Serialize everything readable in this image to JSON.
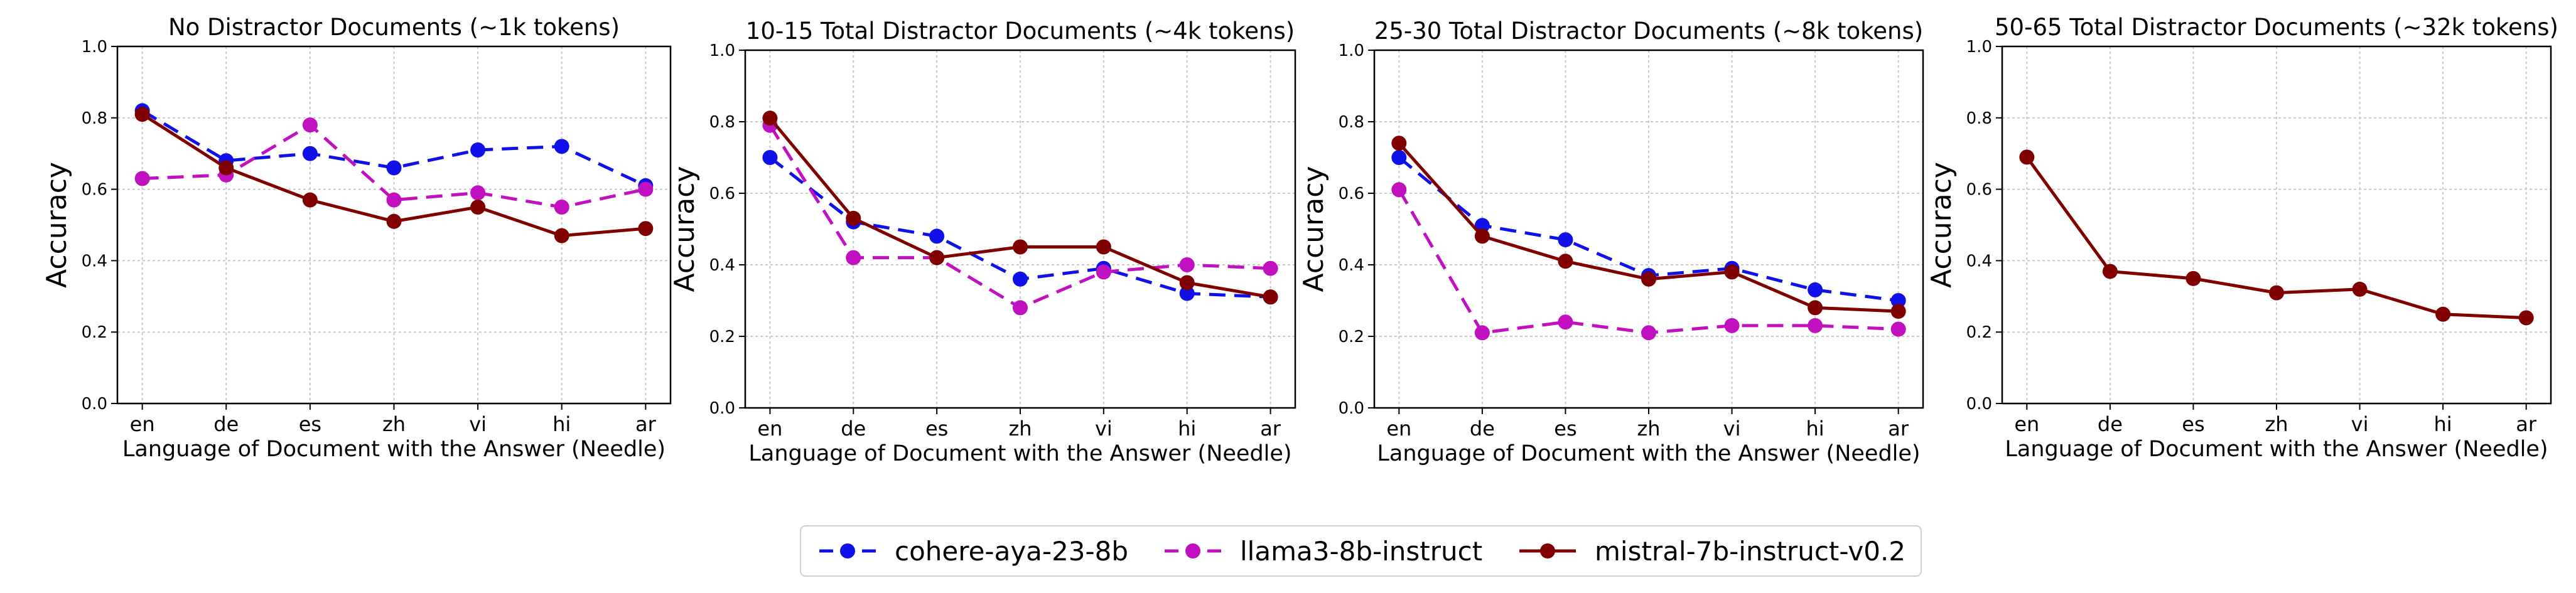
{
  "chart_data": [
    {
      "type": "line",
      "title": "No Distractor Documents (~1k tokens)",
      "xlabel": "Language of Document with the Answer (Needle)",
      "ylabel": "Accuracy",
      "categories": [
        "en",
        "de",
        "es",
        "zh",
        "vi",
        "hi",
        "ar"
      ],
      "ylim": [
        0,
        1
      ],
      "yticks": [
        "0.0",
        "0.2",
        "0.4",
        "0.6",
        "0.8",
        "1.0"
      ],
      "grid": true,
      "series": [
        {
          "name": "cohere-aya-23-8b",
          "values": [
            0.82,
            0.68,
            0.7,
            0.66,
            0.71,
            0.72,
            0.61
          ]
        },
        {
          "name": "llama3-8b-instruct",
          "values": [
            0.63,
            0.64,
            0.78,
            0.57,
            0.59,
            0.55,
            0.6
          ]
        },
        {
          "name": "mistral-7b-instruct-v0.2",
          "values": [
            0.81,
            0.66,
            0.57,
            0.51,
            0.55,
            0.47,
            0.49
          ]
        }
      ]
    },
    {
      "type": "line",
      "title": "10-15 Total Distractor Documents (~4k tokens)",
      "xlabel": "Language of Document with the Answer (Needle)",
      "ylabel": "Accuracy",
      "categories": [
        "en",
        "de",
        "es",
        "zh",
        "vi",
        "hi",
        "ar"
      ],
      "ylim": [
        0,
        1
      ],
      "yticks": [
        "0.0",
        "0.2",
        "0.4",
        "0.6",
        "0.8",
        "1.0"
      ],
      "grid": true,
      "series": [
        {
          "name": "cohere-aya-23-8b",
          "values": [
            0.7,
            0.52,
            0.48,
            0.36,
            0.39,
            0.32,
            0.31
          ]
        },
        {
          "name": "llama3-8b-instruct",
          "values": [
            0.79,
            0.42,
            0.42,
            0.28,
            0.38,
            0.4,
            0.39
          ]
        },
        {
          "name": "mistral-7b-instruct-v0.2",
          "values": [
            0.81,
            0.53,
            0.42,
            0.45,
            0.45,
            0.35,
            0.31
          ]
        }
      ]
    },
    {
      "type": "line",
      "title": "25-30 Total Distractor Documents (~8k tokens)",
      "xlabel": "Language of Document with the Answer (Needle)",
      "ylabel": "Accuracy",
      "categories": [
        "en",
        "de",
        "es",
        "zh",
        "vi",
        "hi",
        "ar"
      ],
      "ylim": [
        0,
        1
      ],
      "yticks": [
        "0.0",
        "0.2",
        "0.4",
        "0.6",
        "0.8",
        "1.0"
      ],
      "grid": true,
      "series": [
        {
          "name": "cohere-aya-23-8b",
          "values": [
            0.7,
            0.51,
            0.47,
            0.37,
            0.39,
            0.33,
            0.3
          ]
        },
        {
          "name": "llama3-8b-instruct",
          "values": [
            0.61,
            0.21,
            0.24,
            0.21,
            0.23,
            0.23,
            0.22
          ]
        },
        {
          "name": "mistral-7b-instruct-v0.2",
          "values": [
            0.74,
            0.48,
            0.41,
            0.36,
            0.38,
            0.28,
            0.27
          ]
        }
      ]
    },
    {
      "type": "line",
      "title": "50-65 Total Distractor Documents (~32k tokens)",
      "xlabel": "Language of Document with the Answer (Needle)",
      "ylabel": "Accuracy",
      "categories": [
        "en",
        "de",
        "es",
        "zh",
        "vi",
        "hi",
        "ar"
      ],
      "ylim": [
        0,
        1
      ],
      "yticks": [
        "0.0",
        "0.2",
        "0.4",
        "0.6",
        "0.8",
        "1.0"
      ],
      "grid": true,
      "series": [
        {
          "name": "mistral-7b-instruct-v0.2",
          "values": [
            0.69,
            0.37,
            0.35,
            0.31,
            0.32,
            0.25,
            0.24
          ]
        }
      ]
    }
  ],
  "legend": {
    "placement": "bottom-center",
    "entries": [
      {
        "name": "cohere-aya-23-8b",
        "color": "#1010e8",
        "style": "dashed"
      },
      {
        "name": "llama3-8b-instruct",
        "color": "#c010c0",
        "style": "dashed"
      },
      {
        "name": "mistral-7b-instruct-v0.2",
        "color": "#800000",
        "style": "solid"
      }
    ]
  },
  "colors": {
    "cohere-aya-23-8b": "#1010e8",
    "llama3-8b-instruct": "#c010c0",
    "mistral-7b-instruct-v0.2": "#800000"
  }
}
